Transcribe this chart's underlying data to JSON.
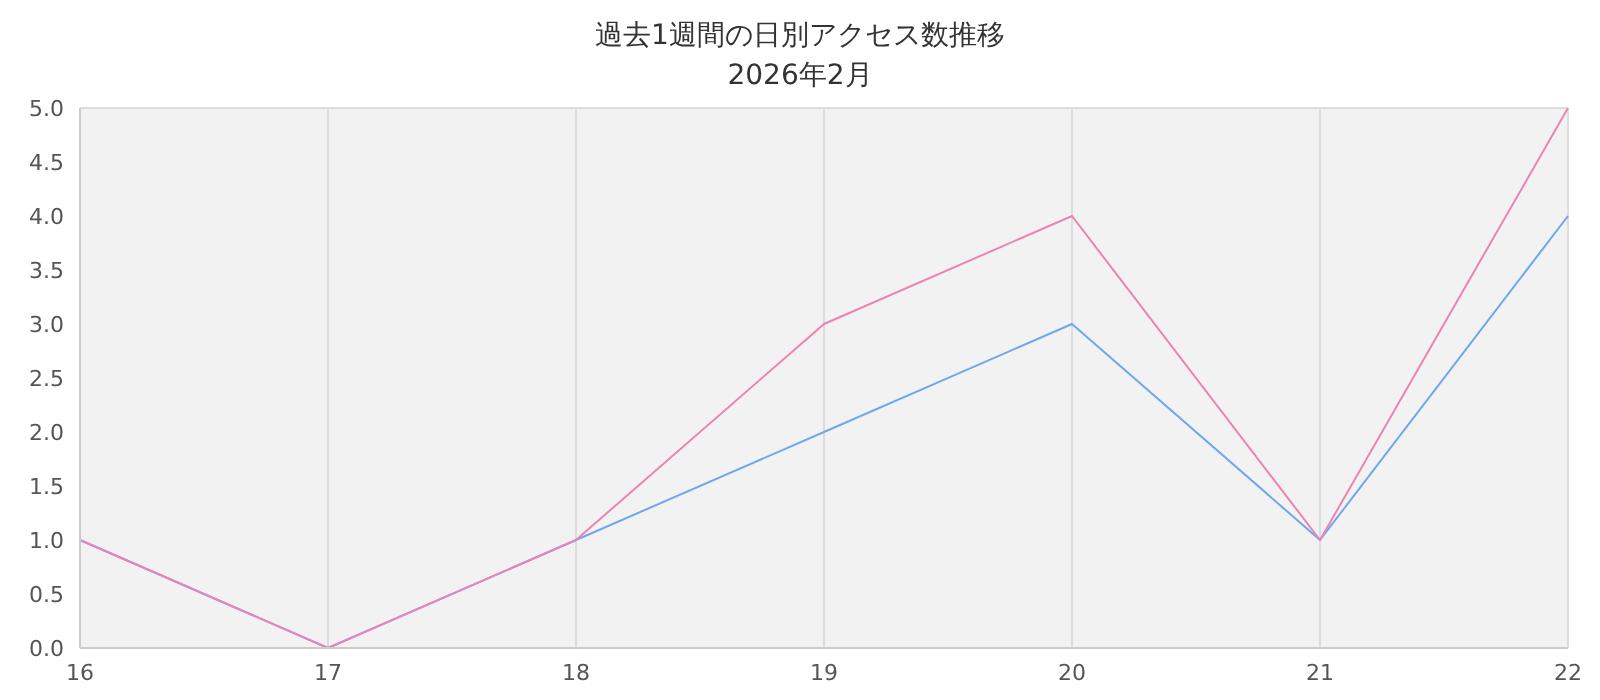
{
  "chart_data": {
    "type": "line",
    "title": "過去1週間の日別アクセス数推移",
    "subtitle": "2026年2月",
    "categories": [
      "16",
      "17",
      "18",
      "19",
      "20",
      "21",
      "22"
    ],
    "series": [
      {
        "color": "#6ea8ec",
        "values": [
          1,
          0,
          1,
          2,
          3,
          1,
          4
        ]
      },
      {
        "color": "#ee82b4",
        "values": [
          1,
          0,
          1,
          3,
          4,
          1,
          5
        ]
      }
    ],
    "ylim": [
      0,
      5
    ],
    "yticks": [
      {
        "value": 0,
        "label": "0.0"
      },
      {
        "value": 0.5,
        "label": "0.5"
      },
      {
        "value": 1,
        "label": "1.0"
      },
      {
        "value": 1.5,
        "label": "1.5"
      },
      {
        "value": 2,
        "label": "2.0"
      },
      {
        "value": 2.5,
        "label": "2.5"
      },
      {
        "value": 3,
        "label": "3.0"
      },
      {
        "value": 3.5,
        "label": "3.5"
      },
      {
        "value": 4,
        "label": "4.0"
      },
      {
        "value": 4.5,
        "label": "4.5"
      },
      {
        "value": 5,
        "label": "5.0"
      }
    ],
    "grid": true,
    "legend": false,
    "marker": "none",
    "line_style": "solid"
  }
}
